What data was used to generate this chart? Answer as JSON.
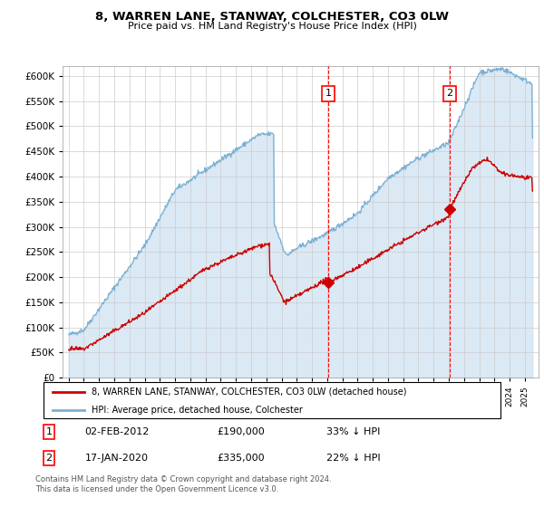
{
  "title": "8, WARREN LANE, STANWAY, COLCHESTER, CO3 0LW",
  "subtitle": "Price paid vs. HM Land Registry's House Price Index (HPI)",
  "hpi_color": "#7ab0d4",
  "hpi_fill_color": "#cce0f0",
  "price_color": "#cc0000",
  "annotation1_date": 2012.08,
  "annotation1_price": 190000,
  "annotation2_date": 2020.04,
  "annotation2_price": 335000,
  "legend_entry1": "8, WARREN LANE, STANWAY, COLCHESTER, CO3 0LW (detached house)",
  "legend_entry2": "HPI: Average price, detached house, Colchester",
  "note1_date": "02-FEB-2012",
  "note1_price": "£190,000",
  "note1_pct": "33% ↓ HPI",
  "note2_date": "17-JAN-2020",
  "note2_price": "£335,000",
  "note2_pct": "22% ↓ HPI",
  "footer": "Contains HM Land Registry data © Crown copyright and database right 2024.\nThis data is licensed under the Open Government Licence v3.0.",
  "ylim": [
    0,
    620000
  ],
  "yticks": [
    0,
    50000,
    100000,
    150000,
    200000,
    250000,
    300000,
    350000,
    400000,
    450000,
    500000,
    550000,
    600000
  ],
  "xstart": 1995,
  "xend": 2025
}
